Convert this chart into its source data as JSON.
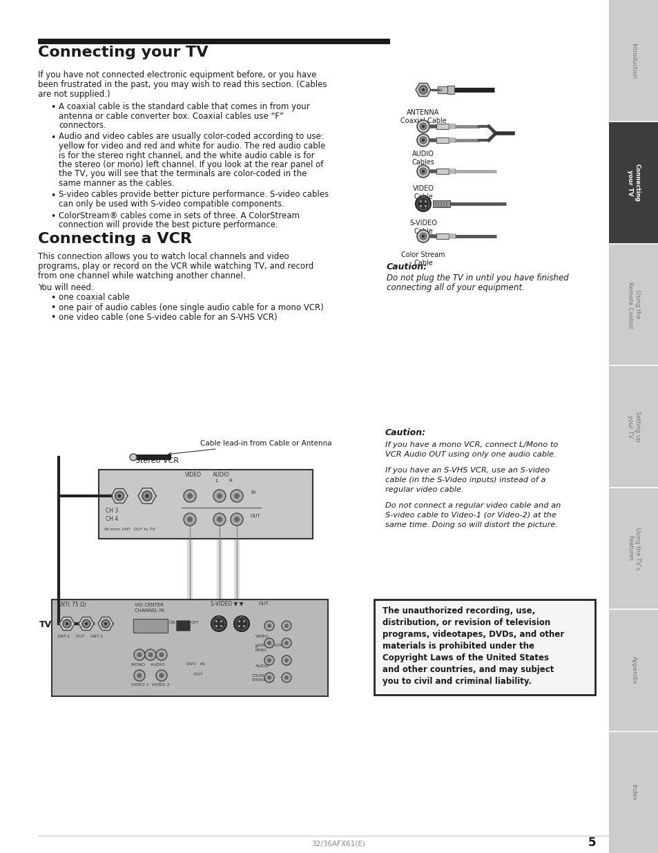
{
  "page_bg": "#ffffff",
  "sidebar_bg": "#cccccc",
  "sidebar_active_bg": "#3d3d3d",
  "sidebar_text_inactive": "#777777",
  "sidebar_text_active": "#ffffff",
  "title_bar_color": "#1a1a1a",
  "body_text_color": "#1a1a1a",
  "title1": "Connecting your TV",
  "title2": "Connecting a VCR",
  "sidebar_items": [
    "Introduction",
    "Connecting\nyour TV",
    "Using the\nRemote Control",
    "Setting up\nyour TV",
    "Using the TV’s\nFeatures",
    "Appendix",
    "Index"
  ],
  "sidebar_active_index": 1,
  "page_number": "5",
  "page_footer": "32/36AFX61(E)",
  "intro_paragraph": "If you have not connected electronic equipment before, or you have\nbeen frustrated in the past, you may wish to read this section. (Cables\nare not supplied.)",
  "bullets_section1": [
    "A coaxial cable is the standard cable that comes in from your\nantenna or cable converter box. Coaxial cables use “F”\nconnectors.",
    "Audio and video cables are usually color-coded according to use:\nyellow for video and red and white for audio. The red audio cable\nis for the stereo right channel, and the white audio cable is for\nthe stereo (or mono) left channel. If you look at the rear panel of\nthe TV, you will see that the terminals are color-coded in the\nsame manner as the cables.",
    "S-video cables provide better picture performance. S-video cables\ncan only be used with S-video compatible components.",
    "ColorStream® cables come in sets of three. A ColorStream\nconnection will provide the best picture performance."
  ],
  "vcr_intro": "This connection allows you to watch local channels and video\nprograms, play or record on the VCR while watching TV, and record\nfrom one channel while watching another channel.",
  "vcr_need": "You will need:",
  "vcr_bullets": [
    "one coaxial cable",
    "one pair of audio cables (one single audio cable for a mono VCR)",
    "one video cable (one S-video cable for an S-VHS VCR)"
  ],
  "caution1_label": "Caution:",
  "caution1_lines": [
    "Do not plug the TV in until you have finished",
    "connecting all of your equipment."
  ],
  "caution2_label": "Caution:",
  "caution2_lines": [
    "If you have a mono VCR, connect L/Mono to",
    "VCR Audio OUT using only one audio cable.",
    "",
    "If you have an S-VHS VCR, use an S-video",
    "cable (in the S-Video inputs) instead of a",
    "regular video cable.",
    "",
    "Do not connect a regular video cable and an",
    "S-video cable to Video-1 (or Video-2) at the",
    "same time. Doing so will distort the picture."
  ],
  "copyright_lines": [
    "The unauthorized recording, use,",
    "distribution, or revision of television",
    "programs, videotapes, DVDs, and other",
    "materials is prohibited under the",
    "Copyright Laws of the United States",
    "and other countries, and may subject",
    "you to civil and criminal liability."
  ]
}
